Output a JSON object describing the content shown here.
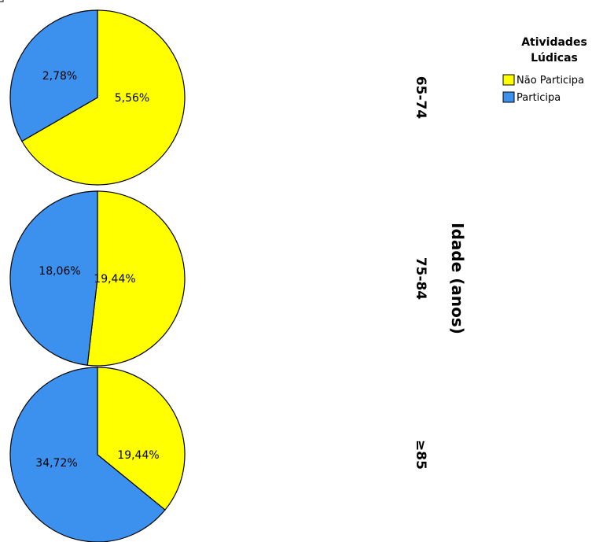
{
  "chart_data": {
    "type": "pie",
    "facet_axis_title": "Idade (anos)",
    "legend": {
      "title_lines": [
        "Atividades",
        "Lúdicas"
      ],
      "entries": [
        {
          "name": "Não Participa",
          "color": "#ffff00"
        },
        {
          "name": "Participa",
          "color": "#3d91ee"
        }
      ]
    },
    "panels": [
      {
        "group": "65-74",
        "slices": [
          {
            "category": "Não Participa",
            "value": 5.56,
            "label": "5,56%"
          },
          {
            "category": "Participa",
            "value": 2.78,
            "label": "2,78%"
          }
        ]
      },
      {
        "group": "75-84",
        "slices": [
          {
            "category": "Não Participa",
            "value": 19.44,
            "label": "19,44%"
          },
          {
            "category": "Participa",
            "value": 18.06,
            "label": "18,06%"
          }
        ]
      },
      {
        "group": "≥85",
        "slices": [
          {
            "category": "Não Participa",
            "value": 19.44,
            "label": "19,44%"
          },
          {
            "category": "Participa",
            "value": 34.72,
            "label": "34,72%"
          }
        ]
      }
    ]
  }
}
